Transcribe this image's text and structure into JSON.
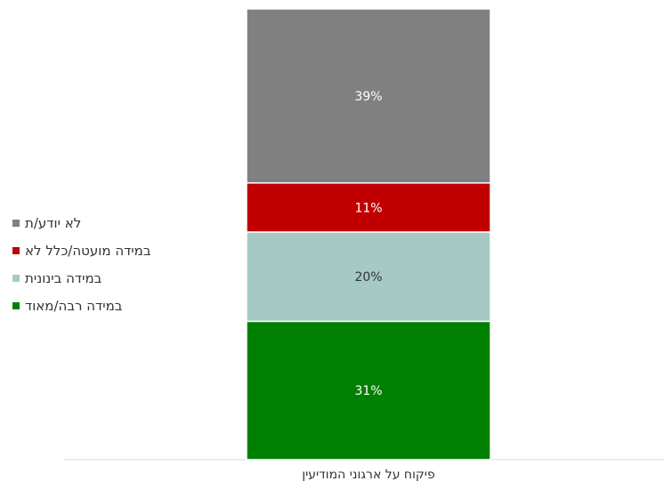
{
  "chart_data": {
    "type": "bar",
    "stacked": true,
    "categories": [
      "פיקוח על ארגוני המודיעין"
    ],
    "series": [
      {
        "name": "במידה רבה/מאוד",
        "values": [
          31
        ],
        "color": "#008000",
        "label_color": "#ffffff",
        "label": "31%"
      },
      {
        "name": "במידה בינונית",
        "values": [
          20
        ],
        "color": "#a6c9c5",
        "label_color": "#333333",
        "label": "20%"
      },
      {
        "name": "במידה מועטה/כלל לא",
        "values": [
          11
        ],
        "color": "#c00000",
        "label_color": "#ffffff",
        "label": "11%"
      },
      {
        "name": "לא יודע/ת",
        "values": [
          39
        ],
        "color": "#808080",
        "label_color": "#ffffff",
        "label": "39%"
      }
    ],
    "ylim": [
      0,
      101
    ],
    "legend_position": "left",
    "legend_order": [
      "לא יודע/ת",
      "במידה מועטה/כלל לא",
      "במידה בינונית",
      "במידה רבה/מאוד"
    ],
    "grid": false
  }
}
